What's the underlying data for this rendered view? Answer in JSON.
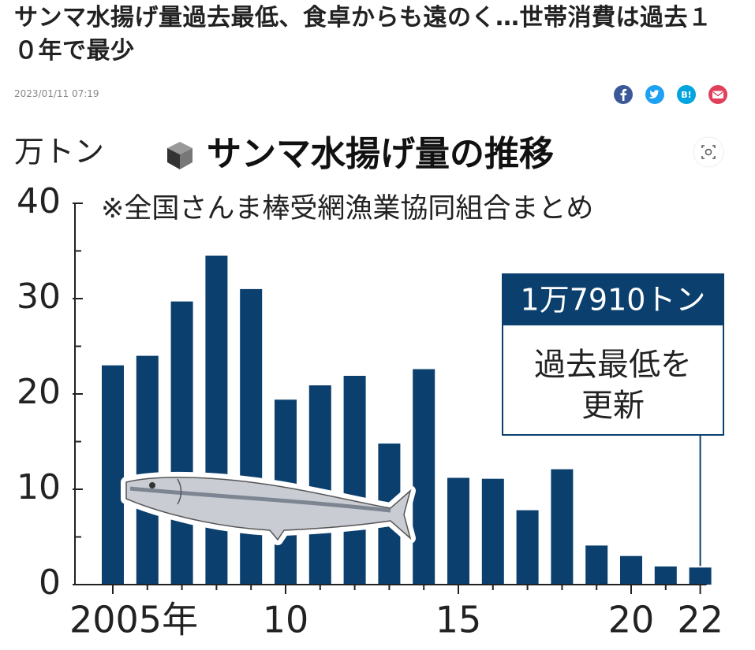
{
  "header": {
    "title": "サンマ水揚げ量過去最低、食卓からも遠のく…世帯消費は過去１０年で最少",
    "date": "2023/01/11 07:19",
    "share_hatena": "B!"
  },
  "chart_data": {
    "type": "bar",
    "title": "サンマ水揚げ量の推移",
    "subtitle": "※全国さんま棒受網漁業協同組合まとめ",
    "y_label": "万トン",
    "categories": [
      "2005年",
      null,
      null,
      null,
      null,
      "10",
      null,
      null,
      null,
      null,
      "15",
      null,
      null,
      null,
      null,
      "20",
      null,
      "22"
    ],
    "values": [
      23.0,
      24.0,
      29.7,
      34.5,
      31.0,
      19.4,
      20.9,
      21.9,
      14.8,
      22.6,
      11.2,
      11.1,
      7.8,
      12.1,
      4.1,
      3.0,
      1.9,
      1.791
    ],
    "value_labels": [
      null,
      null,
      null,
      null,
      null,
      null,
      null,
      null,
      null,
      null,
      null,
      null,
      null,
      null,
      null,
      null,
      null,
      "1万7910トン"
    ],
    "annotation": [
      "過去最低を",
      "更新"
    ],
    "color": "#0b3f6e",
    "ylim": [
      0,
      40
    ],
    "yticks": [
      0,
      10,
      20,
      30,
      40
    ],
    "minor_yticks": [
      5,
      15,
      25,
      35
    ]
  }
}
